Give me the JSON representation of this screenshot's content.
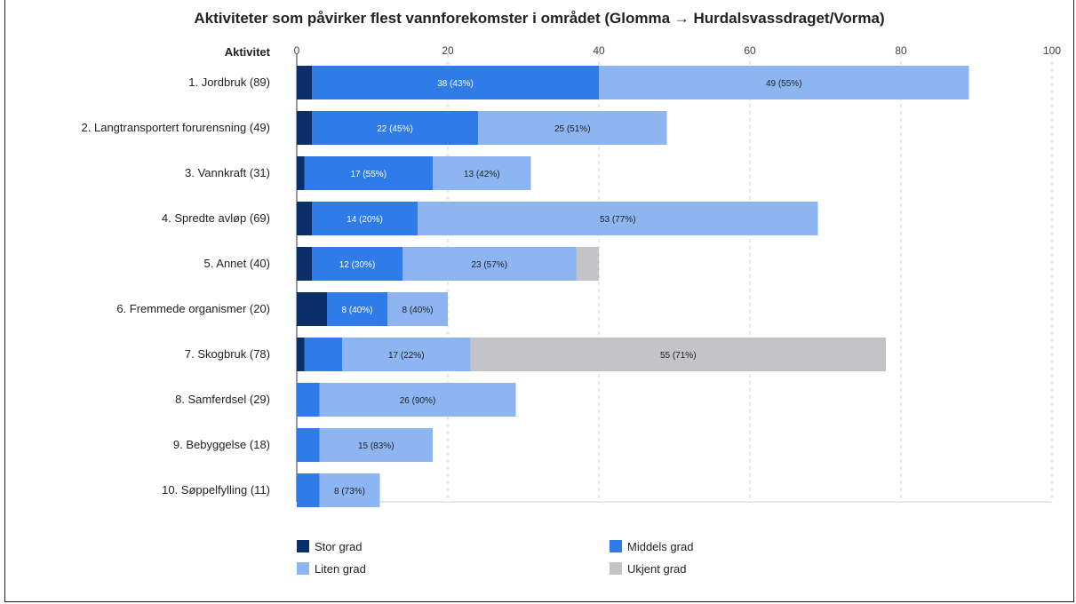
{
  "chart_data": {
    "type": "bar",
    "orientation": "horizontal",
    "stacked": true,
    "title": "Aktiviteter som påvirker flest vannforekomster i området (Glomma → Hurdalsvassdraget/Vorma)",
    "ylabel": "Aktivitet",
    "xlim": [
      0,
      100
    ],
    "xticks": [
      0,
      20,
      40,
      60,
      80,
      100
    ],
    "grid": "vertical-dashed",
    "legend_position": "bottom",
    "categories": [
      "1. Jordbruk (89)",
      "2. Langtransportert forurensning (49)",
      "3. Vannkraft (31)",
      "4. Spredte avløp (69)",
      "5. Annet (40)",
      "6. Fremmede organismer (20)",
      "7. Skogbruk (78)",
      "8. Samferdsel (29)",
      "9. Bebyggelse (18)",
      "10. Søppelfylling (11)"
    ],
    "series": [
      {
        "name": "Stor grad",
        "color": "#0b2f6b",
        "values": [
          2,
          2,
          1,
          2,
          2,
          4,
          1,
          0,
          0,
          0
        ],
        "labels": [
          "",
          "",
          "",
          "",
          "",
          "",
          "",
          "",
          "",
          ""
        ]
      },
      {
        "name": "Middels grad",
        "color": "#2f7be8",
        "values": [
          38,
          22,
          17,
          14,
          12,
          8,
          5,
          3,
          3,
          3
        ],
        "labels": [
          "38 (43%)",
          "22 (45%)",
          "17 (55%)",
          "14 (20%)",
          "12 (30%)",
          "8 (40%)",
          "",
          "",
          "",
          ""
        ]
      },
      {
        "name": "Liten grad",
        "color": "#8db5f2",
        "values": [
          49,
          25,
          13,
          53,
          23,
          8,
          17,
          26,
          15,
          8
        ],
        "labels": [
          "49 (55%)",
          "25 (51%)",
          "13 (42%)",
          "53 (77%)",
          "23 (57%)",
          "8 (40%)",
          "17 (22%)",
          "26 (90%)",
          "15 (83%)",
          "8 (73%)"
        ]
      },
      {
        "name": "Ukjent grad",
        "color": "#c4c3c8",
        "values": [
          0,
          0,
          0,
          0,
          3,
          0,
          55,
          0,
          0,
          0
        ],
        "labels": [
          "",
          "",
          "",
          "",
          "",
          "",
          "55 (71%)",
          "",
          "",
          ""
        ]
      }
    ]
  }
}
